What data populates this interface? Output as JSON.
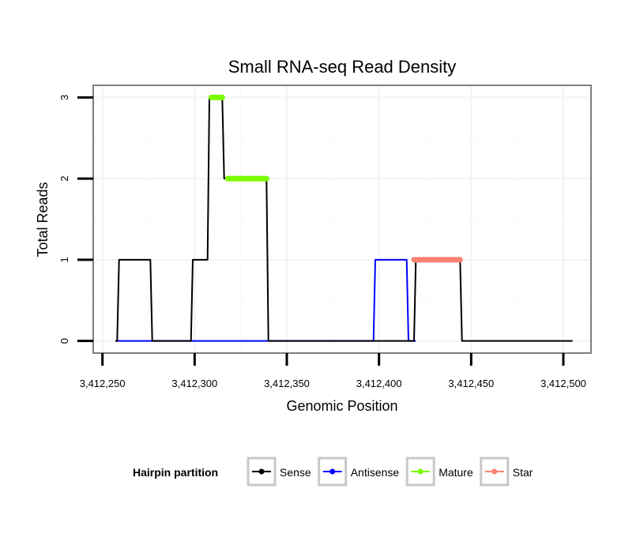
{
  "chart_data": {
    "type": "line",
    "title": "Small RNA-seq Read Density",
    "xlabel": "Genomic Position",
    "ylabel": "Total Reads",
    "xlim": [
      3412245,
      3412515
    ],
    "ylim": [
      -0.15,
      3.15
    ],
    "x_ticks": [
      3412250,
      3412300,
      3412350,
      3412400,
      3412450,
      3412500
    ],
    "x_tick_labels": [
      "3,412,250",
      "3,412,300",
      "3,412,350",
      "3,412,400",
      "3,412,450",
      "3,412,500"
    ],
    "y_ticks": [
      0,
      1,
      2,
      3
    ],
    "y_tick_labels": [
      "0",
      "1",
      "2",
      "3"
    ],
    "grid": true,
    "legend_position": "bottom",
    "legend_title": "Hairpin partition",
    "series": [
      {
        "name": "Sense",
        "color": "#000000",
        "style": "line",
        "x": [
          3412257,
          3412258,
          3412259,
          3412276,
          3412277,
          3412298,
          3412299,
          3412307,
          3412308,
          3412315,
          3412316,
          3412317,
          3412318,
          3412339,
          3412340,
          3412419,
          3412420,
          3412444,
          3412445,
          3412505
        ],
        "y": [
          0,
          0,
          1,
          1,
          0,
          0,
          1,
          1,
          3,
          3,
          2,
          2,
          2,
          2,
          0,
          0,
          1,
          1,
          0,
          0
        ]
      },
      {
        "name": "Antisense",
        "color": "#0000ff",
        "style": "line",
        "x": [
          3412257,
          3412397,
          3412398,
          3412415,
          3412416,
          3412420
        ],
        "y": [
          0,
          0,
          1,
          1,
          0,
          0
        ]
      },
      {
        "name": "Mature",
        "color": "#7cfc00",
        "style": "thick",
        "segments": [
          {
            "x": [
              3412309,
              3412315
            ],
            "y": 3
          },
          {
            "x": [
              3412318,
              3412339
            ],
            "y": 2
          }
        ]
      },
      {
        "name": "Star",
        "color": "#fa8072",
        "style": "thick",
        "segments": [
          {
            "x": [
              3412419,
              3412444
            ],
            "y": 1
          }
        ]
      }
    ]
  }
}
